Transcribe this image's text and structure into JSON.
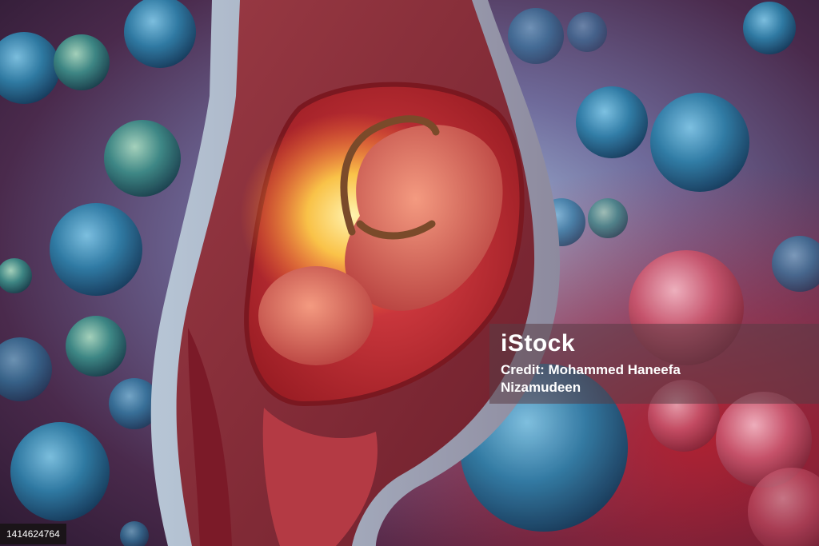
{
  "watermark": {
    "logo": "iStock",
    "credit_prefix": "Credit:",
    "credit_author_first": "Mohammed Haneefa",
    "credit_author_last": "Nizamudeen"
  },
  "image_id": "1414624764",
  "colors": {
    "background_dark": "#3a2340",
    "background_red": "#a01c2c",
    "cell_blue": "#2f7fa8",
    "uterus_red": "#c8282d",
    "glow_yellow": "#ffd24a"
  }
}
